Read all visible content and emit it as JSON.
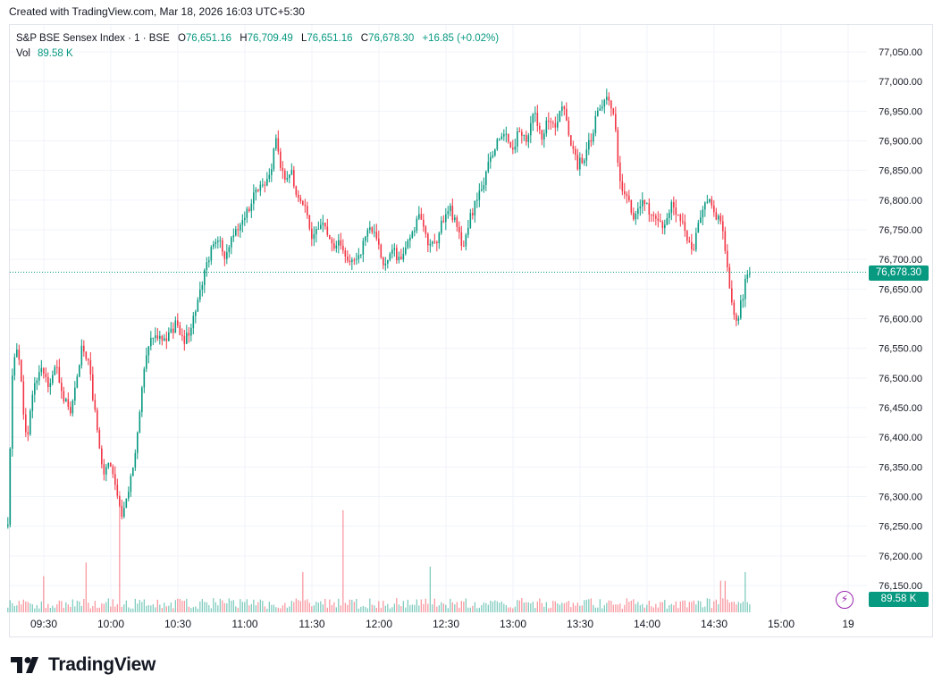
{
  "header": {
    "created_text": "Created with TradingView.com, Mar 18, 2026 16:03 UTC+5:30"
  },
  "legend": {
    "symbol": "S&P BSE Sensex Index · 1 · BSE",
    "open_label": "O",
    "open_value": "76,651.16",
    "high_label": "H",
    "high_value": "76,709.49",
    "low_label": "L",
    "low_value": "76,651.16",
    "close_label": "C",
    "close_value": "76,678.30",
    "change": "+16.85 (+0.02%)",
    "vol_label": "Vol",
    "vol_value": "89.58 K"
  },
  "price_tag": "76,678.30",
  "volume_tag": "89.58 K",
  "alert_icon": "lightning-icon",
  "brand": {
    "logo_text": "TradingView"
  },
  "colors": {
    "up": "#089981",
    "down": "#f23645",
    "grid": "#f0f3fa",
    "alert": "#9c27b0"
  },
  "chart_data": {
    "type": "candlestick",
    "symbol": "S&P BSE Sensex Index",
    "interval": "1",
    "ylim": [
      76130,
      77080
    ],
    "y_ticks": [
      "77,050.00",
      "77,000.00",
      "76,950.00",
      "76,900.00",
      "76,850.00",
      "76,800.00",
      "76,750.00",
      "76,700.00",
      "76,650.00",
      "76,600.00",
      "76,550.00",
      "76,500.00",
      "76,450.00",
      "76,400.00",
      "76,350.00",
      "76,300.00",
      "76,250.00",
      "76,200.00",
      "76,150.00"
    ],
    "x_ticks": [
      "09:30",
      "10:00",
      "10:30",
      "11:00",
      "11:30",
      "12:00",
      "12:30",
      "13:00",
      "13:30",
      "14:00",
      "14:30",
      "15:00",
      "19"
    ],
    "last_price": 76678.3,
    "close_path": [
      {
        "t": "09:15",
        "v": 76250
      },
      {
        "t": "09:17",
        "v": 76520
      },
      {
        "t": "09:19",
        "v": 76560
      },
      {
        "t": "09:21",
        "v": 76470
      },
      {
        "t": "09:23",
        "v": 76380
      },
      {
        "t": "09:25",
        "v": 76470
      },
      {
        "t": "09:27",
        "v": 76500
      },
      {
        "t": "09:29",
        "v": 76520
      },
      {
        "t": "09:32",
        "v": 76480
      },
      {
        "t": "09:35",
        "v": 76520
      },
      {
        "t": "09:38",
        "v": 76470
      },
      {
        "t": "09:41",
        "v": 76440
      },
      {
        "t": "09:44",
        "v": 76500
      },
      {
        "t": "09:46",
        "v": 76560
      },
      {
        "t": "09:49",
        "v": 76520
      },
      {
        "t": "09:52",
        "v": 76420
      },
      {
        "t": "09:55",
        "v": 76340
      },
      {
        "t": "09:58",
        "v": 76360
      },
      {
        "t": "10:01",
        "v": 76290
      },
      {
        "t": "10:03",
        "v": 76270
      },
      {
        "t": "10:05",
        "v": 76300
      },
      {
        "t": "10:07",
        "v": 76340
      },
      {
        "t": "10:09",
        "v": 76400
      },
      {
        "t": "10:11",
        "v": 76480
      },
      {
        "t": "10:13",
        "v": 76540
      },
      {
        "t": "10:16",
        "v": 76580
      },
      {
        "t": "10:19",
        "v": 76560
      },
      {
        "t": "10:22",
        "v": 76570
      },
      {
        "t": "10:25",
        "v": 76590
      },
      {
        "t": "10:28",
        "v": 76560
      },
      {
        "t": "10:31",
        "v": 76580
      },
      {
        "t": "10:34",
        "v": 76620
      },
      {
        "t": "10:37",
        "v": 76680
      },
      {
        "t": "10:40",
        "v": 76720
      },
      {
        "t": "10:43",
        "v": 76740
      },
      {
        "t": "10:46",
        "v": 76700
      },
      {
        "t": "10:49",
        "v": 76740
      },
      {
        "t": "10:52",
        "v": 76760
      },
      {
        "t": "10:55",
        "v": 76780
      },
      {
        "t": "10:58",
        "v": 76810
      },
      {
        "t": "11:01",
        "v": 76830
      },
      {
        "t": "11:04",
        "v": 76830
      },
      {
        "t": "11:07",
        "v": 76900
      },
      {
        "t": "11:10",
        "v": 76840
      },
      {
        "t": "11:13",
        "v": 76850
      },
      {
        "t": "11:16",
        "v": 76810
      },
      {
        "t": "11:19",
        "v": 76790
      },
      {
        "t": "11:22",
        "v": 76740
      },
      {
        "t": "11:25",
        "v": 76760
      },
      {
        "t": "11:28",
        "v": 76750
      },
      {
        "t": "11:31",
        "v": 76710
      },
      {
        "t": "11:34",
        "v": 76730
      },
      {
        "t": "11:37",
        "v": 76690
      },
      {
        "t": "11:40",
        "v": 76700
      },
      {
        "t": "11:43",
        "v": 76720
      },
      {
        "t": "11:46",
        "v": 76760
      },
      {
        "t": "11:49",
        "v": 76730
      },
      {
        "t": "11:52",
        "v": 76690
      },
      {
        "t": "11:55",
        "v": 76720
      },
      {
        "t": "11:58",
        "v": 76700
      },
      {
        "t": "12:01",
        "v": 76710
      },
      {
        "t": "12:04",
        "v": 76750
      },
      {
        "t": "12:07",
        "v": 76770
      },
      {
        "t": "12:10",
        "v": 76730
      },
      {
        "t": "12:13",
        "v": 76720
      },
      {
        "t": "12:16",
        "v": 76760
      },
      {
        "t": "12:19",
        "v": 76790
      },
      {
        "t": "12:22",
        "v": 76760
      },
      {
        "t": "12:25",
        "v": 76720
      },
      {
        "t": "12:28",
        "v": 76770
      },
      {
        "t": "12:31",
        "v": 76800
      },
      {
        "t": "12:34",
        "v": 76830
      },
      {
        "t": "12:37",
        "v": 76880
      },
      {
        "t": "12:40",
        "v": 76900
      },
      {
        "t": "12:43",
        "v": 76910
      },
      {
        "t": "12:46",
        "v": 76890
      },
      {
        "t": "12:49",
        "v": 76920
      },
      {
        "t": "12:52",
        "v": 76900
      },
      {
        "t": "12:55",
        "v": 76950
      },
      {
        "t": "12:58",
        "v": 76910
      },
      {
        "t": "13:01",
        "v": 76940
      },
      {
        "t": "13:04",
        "v": 76930
      },
      {
        "t": "13:07",
        "v": 76960
      },
      {
        "t": "13:10",
        "v": 76900
      },
      {
        "t": "13:13",
        "v": 76860
      },
      {
        "t": "13:16",
        "v": 76870
      },
      {
        "t": "13:19",
        "v": 76910
      },
      {
        "t": "13:22",
        "v": 76960
      },
      {
        "t": "13:25",
        "v": 76970
      },
      {
        "t": "13:28",
        "v": 76950
      },
      {
        "t": "13:31",
        "v": 76820
      },
      {
        "t": "13:34",
        "v": 76800
      },
      {
        "t": "13:37",
        "v": 76770
      },
      {
        "t": "13:40",
        "v": 76800
      },
      {
        "t": "13:43",
        "v": 76780
      },
      {
        "t": "13:46",
        "v": 76760
      },
      {
        "t": "13:49",
        "v": 76750
      },
      {
        "t": "13:52",
        "v": 76790
      },
      {
        "t": "13:55",
        "v": 76770
      },
      {
        "t": "13:58",
        "v": 76750
      },
      {
        "t": "14:01",
        "v": 76710
      },
      {
        "t": "14:04",
        "v": 76770
      },
      {
        "t": "14:07",
        "v": 76800
      },
      {
        "t": "14:10",
        "v": 76780
      },
      {
        "t": "14:13",
        "v": 76760
      },
      {
        "t": "14:15",
        "v": 76700
      },
      {
        "t": "14:17",
        "v": 76640
      },
      {
        "t": "14:19",
        "v": 76590
      },
      {
        "t": "14:21",
        "v": 76620
      },
      {
        "t": "14:23",
        "v": 76660
      },
      {
        "t": "14:25",
        "v": 76678.3
      }
    ]
  }
}
